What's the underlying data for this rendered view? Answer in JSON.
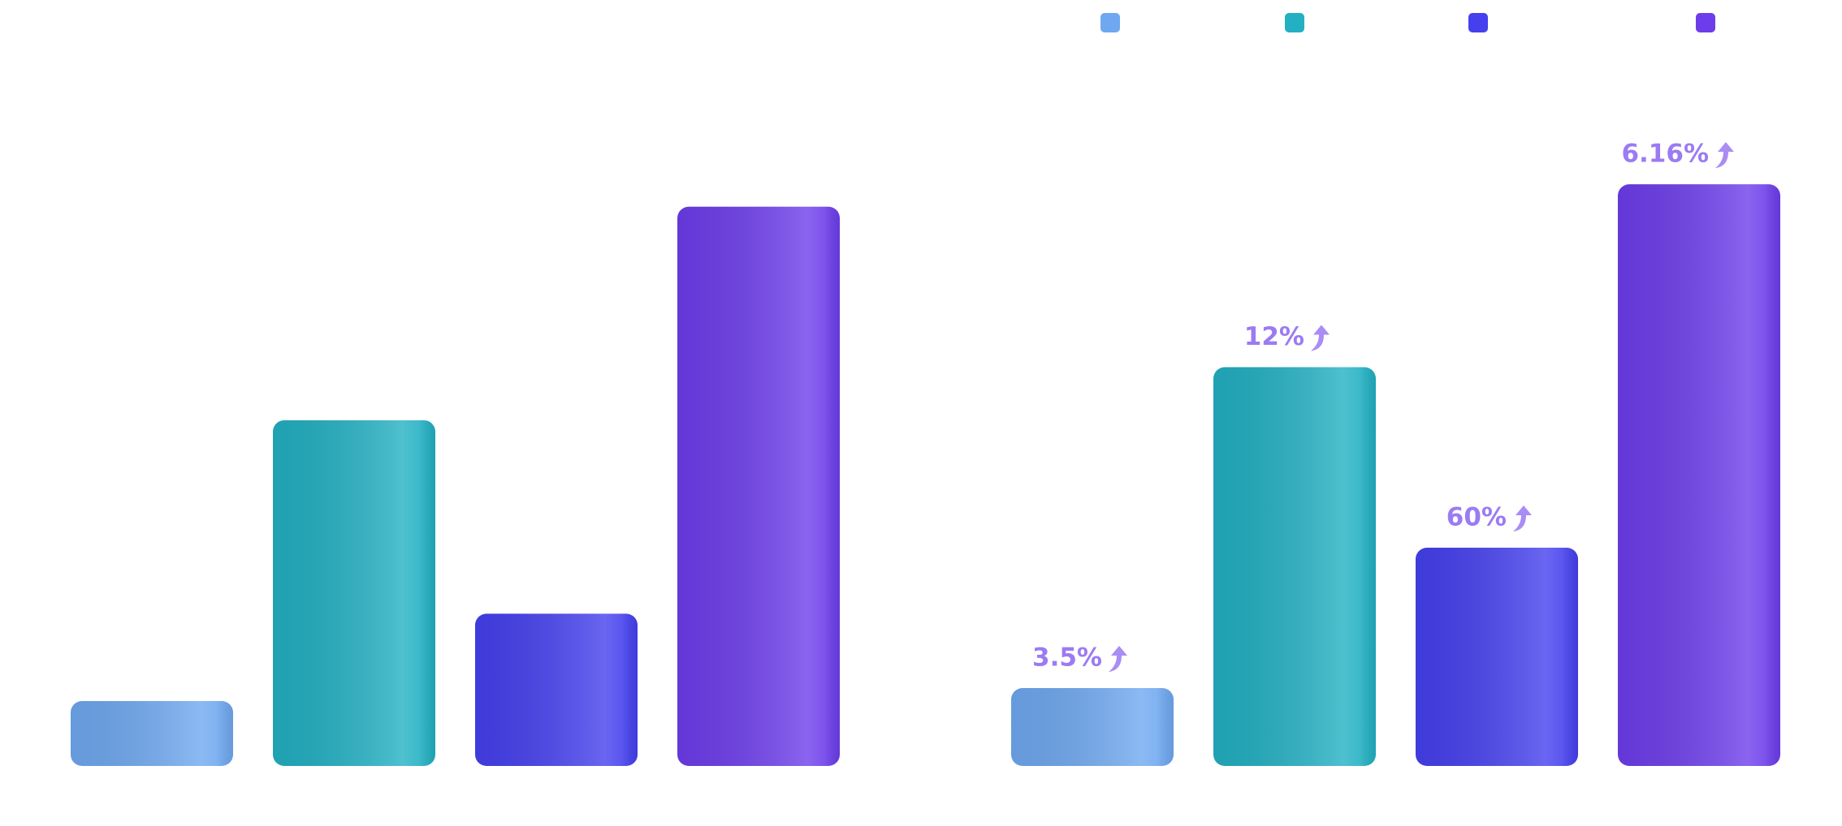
{
  "chart_data": [
    {
      "type": "bar",
      "values": [
        55,
        293,
        129,
        474
      ],
      "colors": [
        "#6fa8f0",
        "#22b0c2",
        "#4540ee",
        "#6d3deb"
      ],
      "ylim": [
        0,
        500
      ]
    },
    {
      "type": "bar",
      "values": [
        66,
        338,
        185,
        493
      ],
      "colors": [
        "#6fa8f0",
        "#22b0c2",
        "#4540ee",
        "#6d3deb"
      ],
      "ylim": [
        0,
        500
      ],
      "annotations": [
        "3.5%",
        "12%",
        "60%",
        "6.16%"
      ]
    }
  ]
}
